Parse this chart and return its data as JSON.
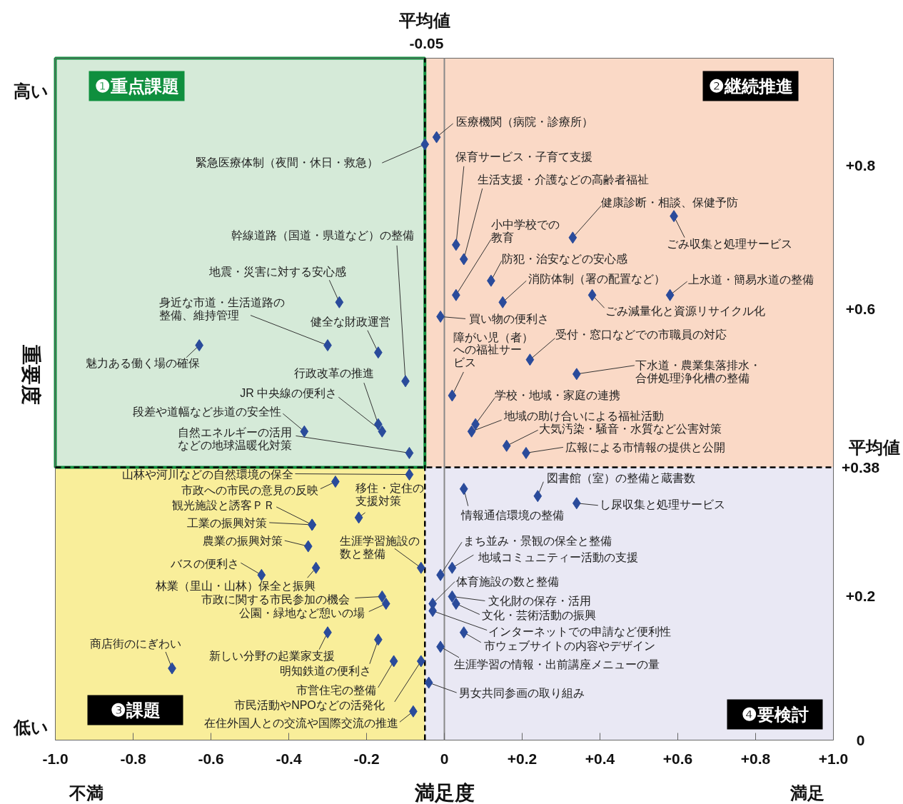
{
  "chart_data": {
    "type": "scatter",
    "xlabel": "満足度",
    "ylabel": "重要度",
    "xlim": [
      -1,
      1
    ],
    "ylim": [
      0,
      0.95
    ],
    "xticks": [
      {
        "value": -1,
        "label": "-1.0"
      },
      {
        "value": -0.8,
        "label": "-0.8"
      },
      {
        "value": -0.6,
        "label": "-0.6"
      },
      {
        "value": -0.4,
        "label": "-0.4"
      },
      {
        "value": -0.2,
        "label": "-0.2"
      },
      0,
      {
        "value": 0.2,
        "label": "+0.2"
      },
      {
        "value": 0.4,
        "label": "+0.4"
      },
      {
        "value": 0.6,
        "label": "+0.6"
      },
      {
        "value": 0.8,
        "label": "+0.8"
      },
      {
        "value": 1,
        "label": "+1.0"
      }
    ],
    "yticks": [
      0,
      {
        "value": 0.2,
        "label": "+0.2"
      },
      {
        "value": 0.38,
        "label": "+0.38"
      },
      {
        "value": 0.6,
        "label": "+0.6"
      },
      {
        "value": 0.8,
        "label": "+0.8"
      }
    ],
    "marker": "diamond",
    "ref_lines": [
      {
        "axis": "x",
        "value": -0.05,
        "label": "平均値",
        "color": "#000000",
        "line_style": "dashed"
      },
      {
        "axis": "y",
        "value": 0.38,
        "label": "平均値",
        "color": "#000000",
        "line_style": "dashed"
      },
      {
        "axis": "x",
        "value": 0,
        "color": "#888888",
        "line_style": "solid"
      }
    ],
    "series": [
      {
        "color": "#2a4b9b",
        "x": [
          -0.05,
          -0.02,
          -0.1,
          -0.27,
          -0.3,
          -0.17,
          -0.63,
          -0.17,
          -0.16,
          -0.36,
          -0.09,
          0.03,
          0.05,
          0.33,
          0.59,
          0.03,
          0.12,
          0.15,
          0.38,
          0.58,
          -0.01,
          0.22,
          0.34,
          0.02,
          0.08,
          0.07,
          0.16,
          0.21,
          -0.09,
          -0.28,
          -0.22,
          -0.34,
          -0.34,
          -0.35,
          -0.47,
          -0.33,
          -0.06,
          -0.16,
          -0.15,
          -0.3,
          -0.7,
          -0.17,
          -0.13,
          -0.06,
          -0.08,
          0.24,
          0.05,
          0.34,
          -0.01,
          0.02,
          -0.03,
          0.02,
          0.03,
          -0.03,
          0.05,
          -0.01,
          -0.04
        ],
        "values": [
          0.83,
          0.84,
          0.5,
          0.61,
          0.55,
          0.54,
          0.55,
          0.44,
          0.43,
          0.43,
          0.4,
          0.69,
          0.67,
          0.7,
          0.73,
          0.62,
          0.64,
          0.61,
          0.62,
          0.62,
          0.59,
          0.53,
          0.51,
          0.48,
          0.44,
          0.43,
          0.41,
          0.4,
          0.37,
          0.36,
          0.31,
          0.3,
          0.3,
          0.27,
          0.23,
          0.24,
          0.24,
          0.2,
          0.19,
          0.15,
          0.1,
          0.14,
          0.11,
          0.11,
          0.04,
          0.34,
          0.35,
          0.33,
          0.23,
          0.24,
          0.19,
          0.2,
          0.19,
          0.18,
          0.15,
          0.13,
          0.08
        ]
      }
    ],
    "annotations": [
      "❶重点課題",
      "❷継続推進",
      "❸課題",
      "❹要検討",
      "高い",
      "低い",
      "不満",
      "満足",
      "-0.05",
      {
        "text": "緊急医療体制（夜間・休日・救急）",
        "x": -0.05,
        "y": 0.83
      },
      {
        "text": "医療機関（病院・診療所）",
        "x": -0.02,
        "y": 0.84
      },
      {
        "text": "幹線道路（国道・県道など）の整備",
        "x": -0.1,
        "y": 0.5
      },
      {
        "text": "地震・災害に対する安心感",
        "x": -0.27,
        "y": 0.61
      },
      {
        "text": "身近な市道・生活道路の整備、維持管理",
        "x": -0.3,
        "y": 0.55
      },
      {
        "text": "健全な財政運営",
        "x": -0.17,
        "y": 0.54
      },
      {
        "text": "魅力ある働く場の確保",
        "x": -0.63,
        "y": 0.55
      },
      {
        "text": "行政改革の推進",
        "x": -0.17,
        "y": 0.44
      },
      {
        "text": "JR 中央線の便利さ",
        "x": -0.16,
        "y": 0.43
      },
      {
        "text": "段差や道幅など歩道の安全性",
        "x": -0.36,
        "y": 0.43
      },
      {
        "text": "自然エネルギーの活用などの地球温暖化対策",
        "x": -0.09,
        "y": 0.4
      },
      {
        "text": "保育サービス・子育て支援",
        "x": 0.03,
        "y": 0.69
      },
      {
        "text": "生活支援・介護などの高齢者福祉",
        "x": 0.05,
        "y": 0.67
      },
      {
        "text": "健康診断・相談、保健予防",
        "x": 0.33,
        "y": 0.7
      },
      {
        "text": "ごみ収集と処理サービス",
        "x": 0.59,
        "y": 0.73
      },
      {
        "text": "小中学校での教育",
        "x": 0.03,
        "y": 0.62
      },
      {
        "text": "防犯・治安などの安心感",
        "x": 0.12,
        "y": 0.64
      },
      {
        "text": "消防体制（署の配置など）",
        "x": 0.15,
        "y": 0.61
      },
      {
        "text": "ごみ減量化と資源リサイクル化",
        "x": 0.38,
        "y": 0.62
      },
      {
        "text": "上水道・簡易水道の整備",
        "x": 0.58,
        "y": 0.62
      },
      {
        "text": "買い物の便利さ",
        "x": -0.01,
        "y": 0.59
      },
      {
        "text": "受付・窓口などでの市職員の対応",
        "x": 0.22,
        "y": 0.53
      },
      {
        "text": "下水道・農業集落排水・合併処理浄化槽の整備",
        "x": 0.34,
        "y": 0.51
      },
      {
        "text": "障がい児（者）への福祉サービス",
        "x": 0.02,
        "y": 0.48
      },
      {
        "text": "学校・地域・家庭の連携",
        "x": 0.08,
        "y": 0.44
      },
      {
        "text": "地域の助け合いによる福祉活動",
        "x": 0.07,
        "y": 0.43
      },
      {
        "text": "大気汚染・騒音・水質など公害対策",
        "x": 0.16,
        "y": 0.41
      },
      {
        "text": "広報による市情報の提供と公開",
        "x": 0.21,
        "y": 0.4
      },
      {
        "text": "山林や河川などの自然環境の保全",
        "x": -0.09,
        "y": 0.37
      },
      {
        "text": "市政への市民の意見の反映",
        "x": -0.28,
        "y": 0.36
      },
      {
        "text": "移住・定住の支援対策",
        "x": -0.22,
        "y": 0.31
      },
      {
        "text": "観光施設と誘客ＰＲ",
        "x": -0.34,
        "y": 0.3
      },
      {
        "text": "工業の振興対策",
        "x": -0.34,
        "y": 0.3
      },
      {
        "text": "農業の振興対策",
        "x": -0.35,
        "y": 0.27
      },
      {
        "text": "バスの便利さ",
        "x": -0.47,
        "y": 0.23
      },
      {
        "text": "林業（里山・山林）保全と振興",
        "x": -0.33,
        "y": 0.24
      },
      {
        "text": "生涯学習施設の数と整備",
        "x": -0.06,
        "y": 0.24
      },
      {
        "text": "市政に関する市民参加の機会",
        "x": -0.16,
        "y": 0.2
      },
      {
        "text": "公園・緑地など憩いの場",
        "x": -0.15,
        "y": 0.19
      },
      {
        "text": "新しい分野の起業家支援",
        "x": -0.3,
        "y": 0.15
      },
      {
        "text": "商店街のにぎわい",
        "x": -0.7,
        "y": 0.1
      },
      {
        "text": "明知鉄道の便利さ",
        "x": -0.17,
        "y": 0.14
      },
      {
        "text": "市営住宅の整備",
        "x": -0.13,
        "y": 0.11
      },
      {
        "text": "市民活動やNPOなどの活発化",
        "x": -0.06,
        "y": 0.11
      },
      {
        "text": "在住外国人との交流や国際交流の推進",
        "x": -0.08,
        "y": 0.04
      },
      {
        "text": "図書館（室）の整備と蔵書数",
        "x": 0.24,
        "y": 0.34
      },
      {
        "text": "情報通信環境の整備",
        "x": 0.05,
        "y": 0.35
      },
      {
        "text": "し尿収集と処理サービス",
        "x": 0.34,
        "y": 0.33
      },
      {
        "text": "まち並み・景観の保全と整備",
        "x": -0.01,
        "y": 0.23
      },
      {
        "text": "地域コミュニティー活動の支援",
        "x": 0.02,
        "y": 0.24
      },
      {
        "text": "体育施設の数と整備",
        "x": -0.03,
        "y": 0.19
      },
      {
        "text": "文化財の保存・活用",
        "x": 0.02,
        "y": 0.2
      },
      {
        "text": "文化・芸術活動の振興",
        "x": 0.03,
        "y": 0.19
      },
      {
        "text": "インターネットでの申請など便利性",
        "x": -0.03,
        "y": 0.18
      },
      {
        "text": "市ウェブサイトの内容やデザイン",
        "x": 0.05,
        "y": 0.15
      },
      {
        "text": "生涯学習の情報・出前講座メニューの量",
        "x": -0.01,
        "y": 0.13
      },
      {
        "text": "男女共同参画の取り組み",
        "x": -0.04,
        "y": 0.08
      }
    ]
  }
}
